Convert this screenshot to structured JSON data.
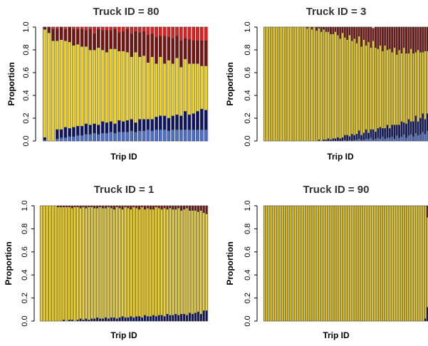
{
  "colors": {
    "blue": "#4a6fd4",
    "navy": "#0d1466",
    "yellow": "#f2d21b",
    "darkred": "#7a1210",
    "red": "#ec1c1c",
    "bar_border": "#333333"
  },
  "chart_data": [
    {
      "type": "bar",
      "stacked": true,
      "title": "Truck ID = 80",
      "xlabel": "Trip ID",
      "ylabel": "Proportion",
      "ylim": [
        0,
        1
      ],
      "yticks": [
        "0.0",
        "0.2",
        "0.4",
        "0.6",
        "0.8",
        "1.0"
      ],
      "n_bars": 40,
      "series_colors": [
        "blue",
        "navy",
        "yellow",
        "darkred",
        "red"
      ],
      "values": {
        "blue": [
          0.01,
          0.0,
          0.0,
          0.02,
          0.03,
          0.03,
          0.04,
          0.04,
          0.05,
          0.05,
          0.06,
          0.06,
          0.07,
          0.06,
          0.07,
          0.07,
          0.08,
          0.07,
          0.08,
          0.08,
          0.08,
          0.09,
          0.08,
          0.09,
          0.09,
          0.1,
          0.09,
          0.1,
          0.1,
          0.1,
          0.09,
          0.1,
          0.1,
          0.1,
          0.1,
          0.1,
          0.1,
          0.1,
          0.1,
          0.1
        ],
        "navy": [
          0.02,
          0.0,
          0.0,
          0.08,
          0.07,
          0.09,
          0.07,
          0.08,
          0.08,
          0.08,
          0.09,
          0.08,
          0.08,
          0.08,
          0.1,
          0.09,
          0.09,
          0.08,
          0.1,
          0.09,
          0.1,
          0.1,
          0.08,
          0.1,
          0.1,
          0.09,
          0.1,
          0.11,
          0.12,
          0.12,
          0.11,
          0.12,
          0.13,
          0.12,
          0.16,
          0.13,
          0.14,
          0.16,
          0.18,
          0.17
        ],
        "yellow": [
          0.95,
          0.95,
          0.88,
          0.78,
          0.79,
          0.76,
          0.76,
          0.72,
          0.72,
          0.7,
          0.68,
          0.66,
          0.65,
          0.68,
          0.63,
          0.62,
          0.64,
          0.66,
          0.61,
          0.62,
          0.6,
          0.55,
          0.62,
          0.55,
          0.56,
          0.5,
          0.55,
          0.47,
          0.52,
          0.46,
          0.51,
          0.46,
          0.5,
          0.43,
          0.46,
          0.45,
          0.44,
          0.42,
          0.38,
          0.39
        ],
        "darkred": [
          0.02,
          0.05,
          0.1,
          0.1,
          0.11,
          0.1,
          0.13,
          0.14,
          0.13,
          0.15,
          0.14,
          0.18,
          0.14,
          0.16,
          0.17,
          0.19,
          0.16,
          0.17,
          0.16,
          0.17,
          0.2,
          0.2,
          0.18,
          0.21,
          0.21,
          0.24,
          0.2,
          0.23,
          0.18,
          0.24,
          0.2,
          0.22,
          0.19,
          0.23,
          0.18,
          0.21,
          0.2,
          0.2,
          0.22,
          0.22
        ],
        "red": [
          0.0,
          0.0,
          0.02,
          0.02,
          0.0,
          0.02,
          0.0,
          0.02,
          0.02,
          0.02,
          0.03,
          0.02,
          0.06,
          0.02,
          0.03,
          0.03,
          0.03,
          0.02,
          0.05,
          0.04,
          0.02,
          0.06,
          0.04,
          0.05,
          0.04,
          0.07,
          0.06,
          0.09,
          0.08,
          0.08,
          0.09,
          0.1,
          0.08,
          0.12,
          0.1,
          0.11,
          0.12,
          0.12,
          0.12,
          0.12
        ]
      }
    },
    {
      "type": "bar",
      "stacked": true,
      "title": "Truck ID = 3",
      "xlabel": "Trip ID",
      "ylabel": "Proportion",
      "ylim": [
        0,
        1
      ],
      "yticks": [
        "0.0",
        "0.2",
        "0.4",
        "0.6",
        "0.8",
        "1.0"
      ],
      "n_bars": 70,
      "series_colors": [
        "blue",
        "navy",
        "yellow",
        "darkred"
      ],
      "values": {
        "blue": [
          0,
          0,
          0,
          0,
          0,
          0,
          0,
          0,
          0,
          0,
          0,
          0,
          0,
          0,
          0,
          0,
          0,
          0,
          0,
          0,
          0,
          0,
          0,
          0,
          0,
          0,
          0,
          0,
          0,
          0,
          0,
          0,
          0,
          0,
          0.01,
          0,
          0.01,
          0,
          0.01,
          0.01,
          0.02,
          0.01,
          0.01,
          0.02,
          0.02,
          0.03,
          0.01,
          0.02,
          0.03,
          0.02,
          0.04,
          0.02,
          0.03,
          0.03,
          0.04,
          0.02,
          0.05,
          0.03,
          0.04,
          0.06,
          0.03,
          0.05,
          0.06,
          0.04,
          0.07,
          0.05,
          0.06,
          0.08,
          0.06,
          0.09
        ],
        "navy": [
          0,
          0,
          0,
          0,
          0,
          0,
          0,
          0,
          0,
          0,
          0,
          0,
          0,
          0,
          0,
          0,
          0,
          0,
          0,
          0,
          0,
          0,
          0,
          0.01,
          0,
          0.01,
          0.01,
          0.02,
          0.01,
          0.02,
          0.02,
          0.03,
          0.02,
          0.03,
          0.04,
          0.05,
          0.03,
          0.06,
          0.04,
          0.05,
          0.07,
          0.04,
          0.06,
          0.08,
          0.05,
          0.07,
          0.09,
          0.06,
          0.08,
          0.1,
          0.07,
          0.09,
          0.11,
          0.08,
          0.1,
          0.12,
          0.09,
          0.11,
          0.13,
          0.1,
          0.12,
          0.14,
          0.11,
          0.13,
          0.15,
          0.12,
          0.14,
          0.16,
          0.13,
          0.15
        ],
        "yellow": [
          1,
          1,
          1,
          1,
          1,
          1,
          1,
          1,
          1,
          1,
          1,
          1,
          1,
          1,
          1,
          1,
          1,
          1,
          0.99,
          1,
          0.98,
          1,
          0.97,
          0.98,
          0.96,
          0.97,
          0.95,
          0.94,
          0.93,
          0.92,
          0.94,
          0.9,
          0.88,
          0.92,
          0.86,
          0.84,
          0.89,
          0.82,
          0.85,
          0.8,
          0.83,
          0.78,
          0.82,
          0.74,
          0.8,
          0.72,
          0.78,
          0.74,
          0.7,
          0.72,
          0.68,
          0.73,
          0.66,
          0.7,
          0.64,
          0.68,
          0.62,
          0.66,
          0.6,
          0.66,
          0.62,
          0.58,
          0.64,
          0.6,
          0.56,
          0.63,
          0.58,
          0.54,
          0.6,
          0.55
        ],
        "darkred": [
          0,
          0,
          0,
          0,
          0,
          0,
          0,
          0,
          0,
          0,
          0,
          0,
          0,
          0,
          0,
          0,
          0,
          0,
          0.01,
          0,
          0.02,
          0,
          0.03,
          0.01,
          0.04,
          0.02,
          0.04,
          0.04,
          0.06,
          0.06,
          0.04,
          0.07,
          0.1,
          0.05,
          0.09,
          0.11,
          0.07,
          0.12,
          0.1,
          0.14,
          0.08,
          0.17,
          0.11,
          0.16,
          0.13,
          0.18,
          0.11,
          0.18,
          0.19,
          0.16,
          0.21,
          0.16,
          0.2,
          0.19,
          0.22,
          0.18,
          0.24,
          0.2,
          0.23,
          0.18,
          0.23,
          0.23,
          0.19,
          0.23,
          0.22,
          0.2,
          0.22,
          0.22,
          0.21,
          0.21
        ]
      }
    },
    {
      "type": "bar",
      "stacked": true,
      "title": "Truck ID = 1",
      "xlabel": "Trip ID",
      "ylabel": "Proportion",
      "ylim": [
        0,
        1
      ],
      "yticks": [
        "0.0",
        "0.2",
        "0.4",
        "0.6",
        "0.8",
        "1.0"
      ],
      "n_bars": 60,
      "series_colors": [
        "navy",
        "yellow",
        "darkred"
      ],
      "values": {
        "navy": [
          0,
          0,
          0,
          0,
          0,
          0,
          0,
          0,
          0.01,
          0,
          0.01,
          0.01,
          0,
          0.01,
          0.02,
          0.01,
          0.02,
          0.01,
          0.02,
          0.02,
          0.03,
          0.02,
          0.02,
          0.03,
          0.02,
          0.03,
          0.03,
          0.02,
          0.03,
          0.04,
          0.03,
          0.03,
          0.04,
          0.03,
          0.04,
          0.04,
          0.03,
          0.05,
          0.04,
          0.04,
          0.05,
          0.04,
          0.05,
          0.05,
          0.04,
          0.06,
          0.05,
          0.05,
          0.06,
          0.05,
          0.06,
          0.06,
          0.05,
          0.07,
          0.06,
          0.07,
          0.08,
          0.06,
          0.09,
          0.09
        ],
        "yellow": [
          1,
          1,
          1,
          1,
          1,
          1,
          0.99,
          0.99,
          0.98,
          0.99,
          0.98,
          0.97,
          0.99,
          0.98,
          0.96,
          0.98,
          0.96,
          0.98,
          0.97,
          0.96,
          0.95,
          0.97,
          0.96,
          0.95,
          0.97,
          0.95,
          0.94,
          0.97,
          0.95,
          0.93,
          0.96,
          0.95,
          0.93,
          0.96,
          0.94,
          0.93,
          0.96,
          0.92,
          0.94,
          0.93,
          0.92,
          0.95,
          0.93,
          0.92,
          0.94,
          0.91,
          0.93,
          0.92,
          0.91,
          0.93,
          0.9,
          0.91,
          0.93,
          0.89,
          0.9,
          0.89,
          0.87,
          0.9,
          0.85,
          0.84
        ],
        "darkred": [
          0,
          0,
          0,
          0,
          0,
          0,
          0.01,
          0.01,
          0.01,
          0.01,
          0.01,
          0.02,
          0.01,
          0.01,
          0.02,
          0.01,
          0.02,
          0.01,
          0.01,
          0.02,
          0.02,
          0.01,
          0.02,
          0.02,
          0.01,
          0.02,
          0.03,
          0.01,
          0.02,
          0.03,
          0.01,
          0.02,
          0.03,
          0.01,
          0.02,
          0.03,
          0.01,
          0.03,
          0.02,
          0.03,
          0.03,
          0.01,
          0.02,
          0.03,
          0.02,
          0.03,
          0.02,
          0.03,
          0.03,
          0.02,
          0.04,
          0.03,
          0.02,
          0.04,
          0.04,
          0.04,
          0.05,
          0.04,
          0.06,
          0.07
        ]
      }
    },
    {
      "type": "bar",
      "stacked": true,
      "title": "Truck ID = 90",
      "xlabel": "Trip ID",
      "ylabel": "Proportion",
      "ylim": [
        0,
        1
      ],
      "yticks": [
        "0.0",
        "0.2",
        "0.4",
        "0.6",
        "0.8",
        "1.0"
      ],
      "n_bars": 75,
      "series_colors": [
        "navy",
        "yellow",
        "darkred"
      ],
      "values": {
        "navy": [
          0,
          0,
          0,
          0,
          0,
          0,
          0,
          0,
          0,
          0,
          0,
          0,
          0,
          0,
          0,
          0,
          0,
          0,
          0,
          0,
          0,
          0,
          0,
          0,
          0,
          0,
          0,
          0,
          0,
          0,
          0,
          0,
          0,
          0,
          0,
          0,
          0,
          0,
          0,
          0,
          0,
          0,
          0,
          0,
          0,
          0,
          0,
          0,
          0,
          0,
          0,
          0,
          0,
          0,
          0,
          0,
          0,
          0,
          0,
          0,
          0,
          0,
          0,
          0,
          0,
          0,
          0,
          0,
          0,
          0,
          0,
          0,
          0,
          0.02,
          0.12
        ],
        "yellow": [
          1,
          1,
          1,
          1,
          1,
          1,
          1,
          1,
          1,
          1,
          1,
          1,
          1,
          1,
          1,
          1,
          1,
          1,
          1,
          1,
          1,
          1,
          1,
          1,
          1,
          1,
          1,
          1,
          1,
          1,
          1,
          1,
          1,
          1,
          1,
          1,
          1,
          1,
          1,
          1,
          1,
          1,
          1,
          1,
          1,
          1,
          1,
          1,
          1,
          1,
          1,
          1,
          1,
          1,
          1,
          1,
          1,
          1,
          1,
          1,
          1,
          1,
          1,
          1,
          1,
          1,
          1,
          1,
          1,
          1,
          1,
          1,
          1,
          0.98,
          0.78
        ],
        "darkred": [
          0,
          0,
          0,
          0,
          0,
          0,
          0,
          0,
          0,
          0,
          0,
          0,
          0,
          0,
          0,
          0,
          0,
          0,
          0,
          0,
          0,
          0,
          0,
          0,
          0,
          0,
          0,
          0,
          0,
          0,
          0,
          0,
          0,
          0,
          0,
          0,
          0,
          0,
          0,
          0,
          0,
          0,
          0,
          0,
          0,
          0,
          0,
          0,
          0,
          0,
          0,
          0,
          0,
          0,
          0,
          0,
          0,
          0,
          0,
          0,
          0,
          0,
          0,
          0,
          0,
          0,
          0,
          0,
          0,
          0,
          0,
          0,
          0,
          0,
          0.1
        ]
      }
    }
  ]
}
